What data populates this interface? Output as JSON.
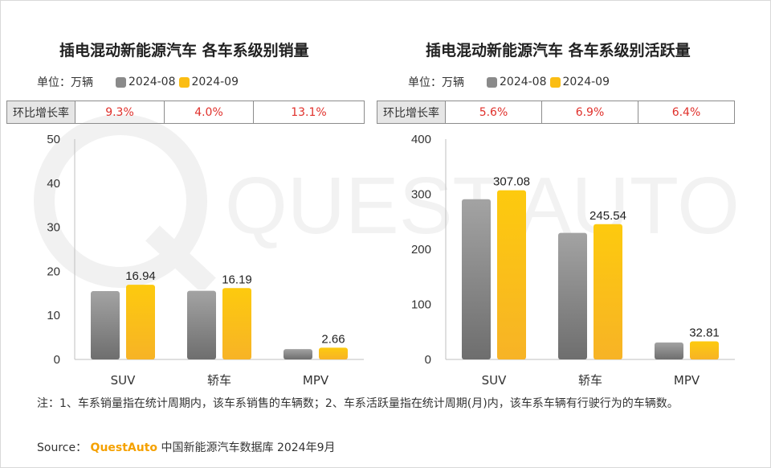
{
  "watermark_text": "QUEST AUTO",
  "series_colors": {
    "2024-08": "#8a8a8a",
    "2024-09": "#fbbd13"
  },
  "left": {
    "title": "插电混动新能源汽车 各车系级别销量",
    "unit_label": "单位：万辆",
    "legend": [
      "2024-08",
      "2024-09"
    ],
    "growth_label": "环比增长率",
    "growth_values": [
      "9.3%",
      "4.0%",
      "13.1%"
    ]
  },
  "right": {
    "title": "插电混动新能源汽车 各车系级别活跃量",
    "unit_label": "单位：万辆",
    "legend": [
      "2024-08",
      "2024-09"
    ],
    "growth_label": "环比增长率",
    "growth_values": [
      "5.6%",
      "6.9%",
      "6.4%"
    ]
  },
  "note": "注：1、车系销量指在统计周期内，该车系销售的车辆数；2、车系活跃量指在统计周期(月)内，该车系车辆有行驶行为的车辆数。",
  "source": {
    "prefix": "Source：",
    "brand": "QuestAuto",
    "rest": "中国新能源汽车数据库 2024年9月"
  },
  "chart_data": [
    {
      "type": "bar",
      "title": "插电混动新能源汽车 各车系级别销量",
      "categories": [
        "SUV",
        "轿车",
        "MPV"
      ],
      "series": [
        {
          "name": "2024-08",
          "values": [
            15.5,
            15.57,
            2.35
          ]
        },
        {
          "name": "2024-09",
          "values": [
            16.94,
            16.19,
            2.66
          ]
        }
      ],
      "data_labels": [
        "16.94",
        "16.19",
        "2.66"
      ],
      "ylim": [
        0,
        50
      ],
      "yticks": [
        0,
        10,
        20,
        30,
        40,
        50
      ],
      "ylabel": "",
      "xlabel": ""
    },
    {
      "type": "bar",
      "title": "插电混动新能源汽车 各车系级别活跃量",
      "categories": [
        "SUV",
        "轿车",
        "MPV"
      ],
      "series": [
        {
          "name": "2024-08",
          "values": [
            290.8,
            229.7,
            30.84
          ]
        },
        {
          "name": "2024-09",
          "values": [
            307.08,
            245.54,
            32.81
          ]
        }
      ],
      "data_labels": [
        "307.08",
        "245.54",
        "32.81"
      ],
      "ylim": [
        0,
        400
      ],
      "yticks": [
        0,
        100,
        200,
        300,
        400
      ],
      "ylabel": "",
      "xlabel": ""
    }
  ]
}
